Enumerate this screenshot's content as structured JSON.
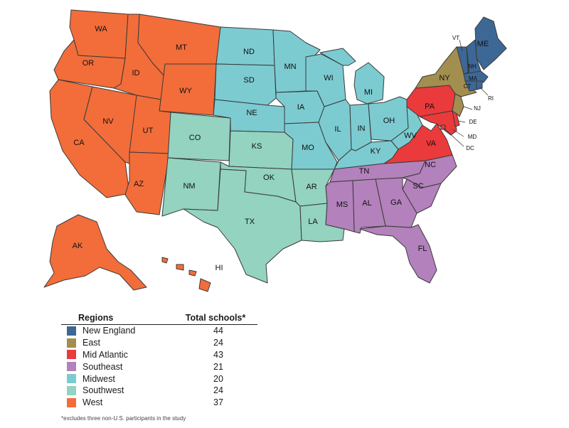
{
  "legend": {
    "header_region": "Regions",
    "header_total": "Total schools*",
    "rows": [
      {
        "name": "New England",
        "total": "44",
        "color": "#3d6896"
      },
      {
        "name": "East",
        "total": "24",
        "color": "#a28f4f"
      },
      {
        "name": "Mid Atlantic",
        "total": "43",
        "color": "#ea3a3c"
      },
      {
        "name": "Southeast",
        "total": "21",
        "color": "#b381bb"
      },
      {
        "name": "Midwest",
        "total": "20",
        "color": "#7ccbd1"
      },
      {
        "name": "Southwest",
        "total": "24",
        "color": "#93d3bf"
      },
      {
        "name": "West",
        "total": "37",
        "color": "#f26d3a"
      }
    ]
  },
  "footnote": "*excludes three non-U.S. participants in the study",
  "states": {
    "WA": "WA",
    "OR": "OR",
    "CA": "CA",
    "NV": "NV",
    "ID": "ID",
    "MT": "MT",
    "WY": "WY",
    "UT": "UT",
    "AZ": "AZ",
    "AK": "AK",
    "HI": "HI",
    "CO": "CO",
    "NM": "NM",
    "TX": "TX",
    "OK": "OK",
    "KS": "KS",
    "AR": "AR",
    "LA": "LA",
    "ND": "ND",
    "SD": "SD",
    "NE": "NE",
    "MN": "MN",
    "IA": "IA",
    "MO": "MO",
    "WI": "WI",
    "IL": "IL",
    "MI": "MI",
    "IN": "IN",
    "OH": "OH",
    "KY": "KY",
    "WV": "WV",
    "TN": "TN",
    "MS": "MS",
    "AL": "AL",
    "GA": "GA",
    "SC": "SC",
    "NC": "NC",
    "FL": "FL",
    "PA": "PA",
    "VA": "VA",
    "MD": "MD",
    "DE": "DE",
    "DC": "DC",
    "NY": "NY",
    "NJ": "NJ",
    "ME": "ME",
    "VT": "VT",
    "NH": "NH",
    "MA": "MA",
    "RI": "RI",
    "CT": "CT"
  }
}
